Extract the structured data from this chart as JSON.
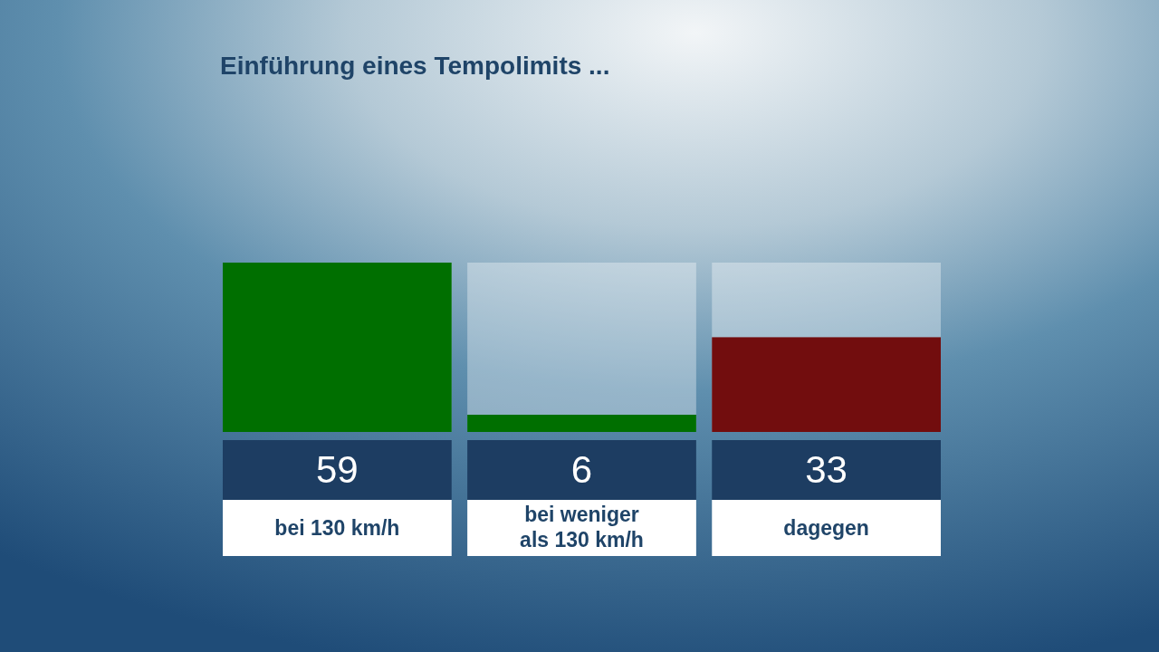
{
  "chart_data": {
    "type": "bar",
    "title": "Einführung eines Tempolimits ...",
    "categories": [
      "bei 130 km/h",
      "bei weniger als 130 km/h",
      "dagegen"
    ],
    "values": [
      59,
      6,
      33
    ],
    "colors": [
      "#006f00",
      "#006f00",
      "#720d0e"
    ],
    "data_labels": true
  }
}
